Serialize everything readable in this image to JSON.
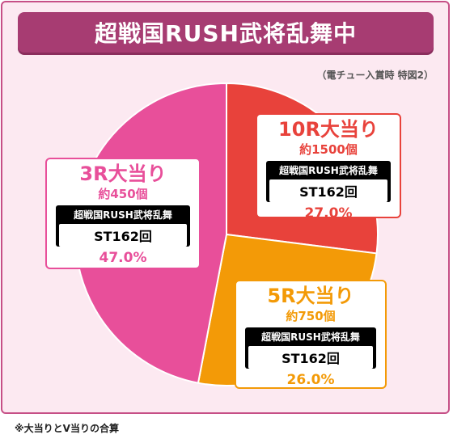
{
  "header": {
    "title": "超戦国RUSH武将乱舞中"
  },
  "note": "（電チュー入賞時 特図2）",
  "footnote": "※大当りとV当りの合算",
  "colors": {
    "slice_10r": "#e8423b",
    "slice_5r": "#f39a07",
    "slice_3r": "#e84f9a"
  },
  "chart_data": {
    "type": "pie",
    "title": "超戦国RUSH武将乱舞中",
    "slices": [
      {
        "label": "10R大当り",
        "sub": "約1500個",
        "mode": "超戦国RUSH武将乱舞",
        "st": "ST162回",
        "value": 27.0,
        "pct_label": "27.0%"
      },
      {
        "label": "5R大当り",
        "sub": "約750個",
        "mode": "超戦国RUSH武将乱舞",
        "st": "ST162回",
        "value": 26.0,
        "pct_label": "26.0%"
      },
      {
        "label": "3R大当り",
        "sub": "約450個",
        "mode": "超戦国RUSH武将乱舞",
        "st": "ST162回",
        "value": 47.0,
        "pct_label": "47.0%"
      }
    ]
  }
}
